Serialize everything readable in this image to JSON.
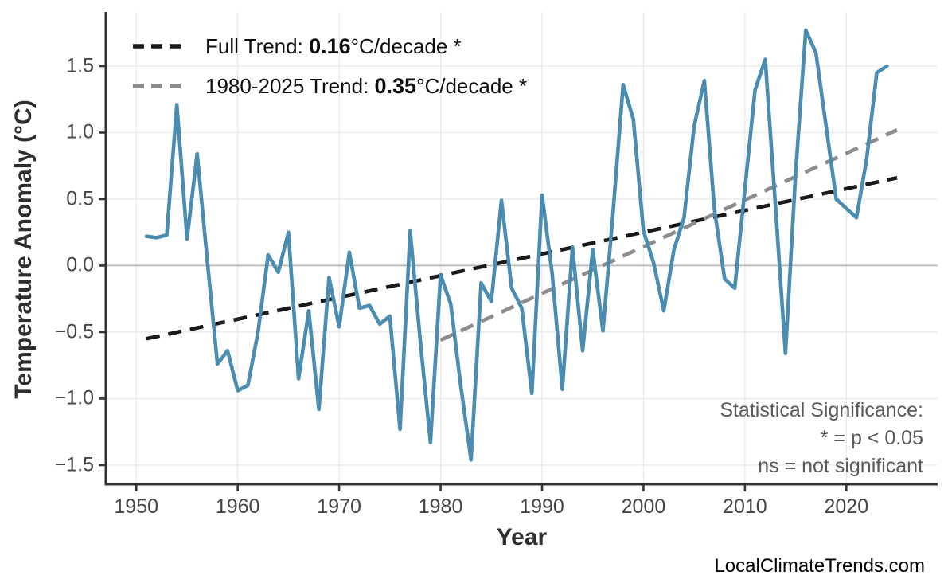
{
  "page": {
    "watermark": "LocalClimateTrends.com"
  },
  "chart_data": {
    "type": "line",
    "title": "",
    "xlabel": "Year",
    "ylabel": "Temperature Anomaly (°C)",
    "grid": true,
    "legend_position": "top-left",
    "xlim": [
      1947,
      2029
    ],
    "ylim": [
      -1.644,
      1.907
    ],
    "x_ticks": [
      1950,
      1960,
      1970,
      1980,
      1990,
      2000,
      2010,
      2020
    ],
    "y_ticks": [
      {
        "value": 1.5,
        "label": "1.5"
      },
      {
        "value": 1.0,
        "label": "1.0"
      },
      {
        "value": 0.5,
        "label": "0.5"
      },
      {
        "value": 0.0,
        "label": "0.0"
      },
      {
        "value": -0.5,
        "label": "−0.5"
      },
      {
        "value": -1.0,
        "label": "−1.0"
      },
      {
        "value": -1.5,
        "label": "−1.5"
      }
    ],
    "colors": {
      "series_blue": "#4B8DB1",
      "full_trend_black": "#1a1a1a",
      "recent_trend_gray": "#8c8c8c",
      "zero_line": "#b3b3b3",
      "gridline": "#e9e9e9",
      "spine": "#333333"
    },
    "series": [
      {
        "name": "annual-temperature-anomaly",
        "color": "#4B8DB1",
        "x": [
          1951,
          1952,
          1953,
          1954,
          1955,
          1956,
          1957,
          1958,
          1959,
          1960,
          1961,
          1962,
          1963,
          1964,
          1965,
          1966,
          1967,
          1968,
          1969,
          1970,
          1971,
          1972,
          1973,
          1974,
          1975,
          1976,
          1977,
          1978,
          1979,
          1980,
          1981,
          1982,
          1983,
          1984,
          1985,
          1986,
          1987,
          1988,
          1989,
          1990,
          1991,
          1992,
          1993,
          1994,
          1995,
          1996,
          1997,
          1998,
          1999,
          2000,
          2001,
          2002,
          2003,
          2004,
          2005,
          2006,
          2007,
          2008,
          2009,
          2010,
          2011,
          2012,
          2013,
          2014,
          2015,
          2016,
          2017,
          2018,
          2019,
          2020,
          2021,
          2022,
          2023,
          2024
        ],
        "values": [
          0.22,
          0.21,
          0.23,
          1.21,
          0.2,
          0.84,
          0.04,
          -0.74,
          -0.64,
          -0.94,
          -0.9,
          -0.5,
          0.08,
          -0.05,
          0.25,
          -0.85,
          -0.34,
          -1.08,
          -0.09,
          -0.46,
          0.1,
          -0.32,
          -0.3,
          -0.44,
          -0.38,
          -1.23,
          0.26,
          -0.57,
          -1.33,
          -0.07,
          -0.29,
          -0.91,
          -1.46,
          -0.13,
          -0.27,
          0.49,
          -0.17,
          -0.32,
          -0.96,
          0.53,
          -0.06,
          -0.93,
          0.14,
          -0.64,
          0.12,
          -0.49,
          0.4,
          1.36,
          1.1,
          0.26,
          0.02,
          -0.34,
          0.12,
          0.36,
          1.05,
          1.39,
          0.42,
          -0.1,
          -0.17,
          0.58,
          1.32,
          1.55,
          0.46,
          -0.66,
          0.7,
          1.77,
          1.6,
          1.05,
          0.5,
          0.43,
          0.36,
          0.8,
          1.45,
          1.5
        ]
      }
    ],
    "trend_lines": [
      {
        "name": "full-trend",
        "color": "#1a1a1a",
        "x": [
          1951,
          2025
        ],
        "values": [
          -0.55,
          0.66
        ],
        "slope_per_decade": 0.16,
        "label_prefix": "Full Trend: ",
        "label_value": "0.16",
        "label_suffix": "°C/decade *"
      },
      {
        "name": "recent-trend",
        "color": "#8c8c8c",
        "x": [
          1980,
          2025
        ],
        "values": [
          -0.56,
          1.02
        ],
        "slope_per_decade": 0.35,
        "label_prefix": "1980-2025 Trend: ",
        "label_value": "0.35",
        "label_suffix": "°C/decade *"
      }
    ],
    "annotation": {
      "lines": [
        "Statistical Significance:",
        "* = p < 0.05",
        "ns = not significant"
      ]
    }
  }
}
